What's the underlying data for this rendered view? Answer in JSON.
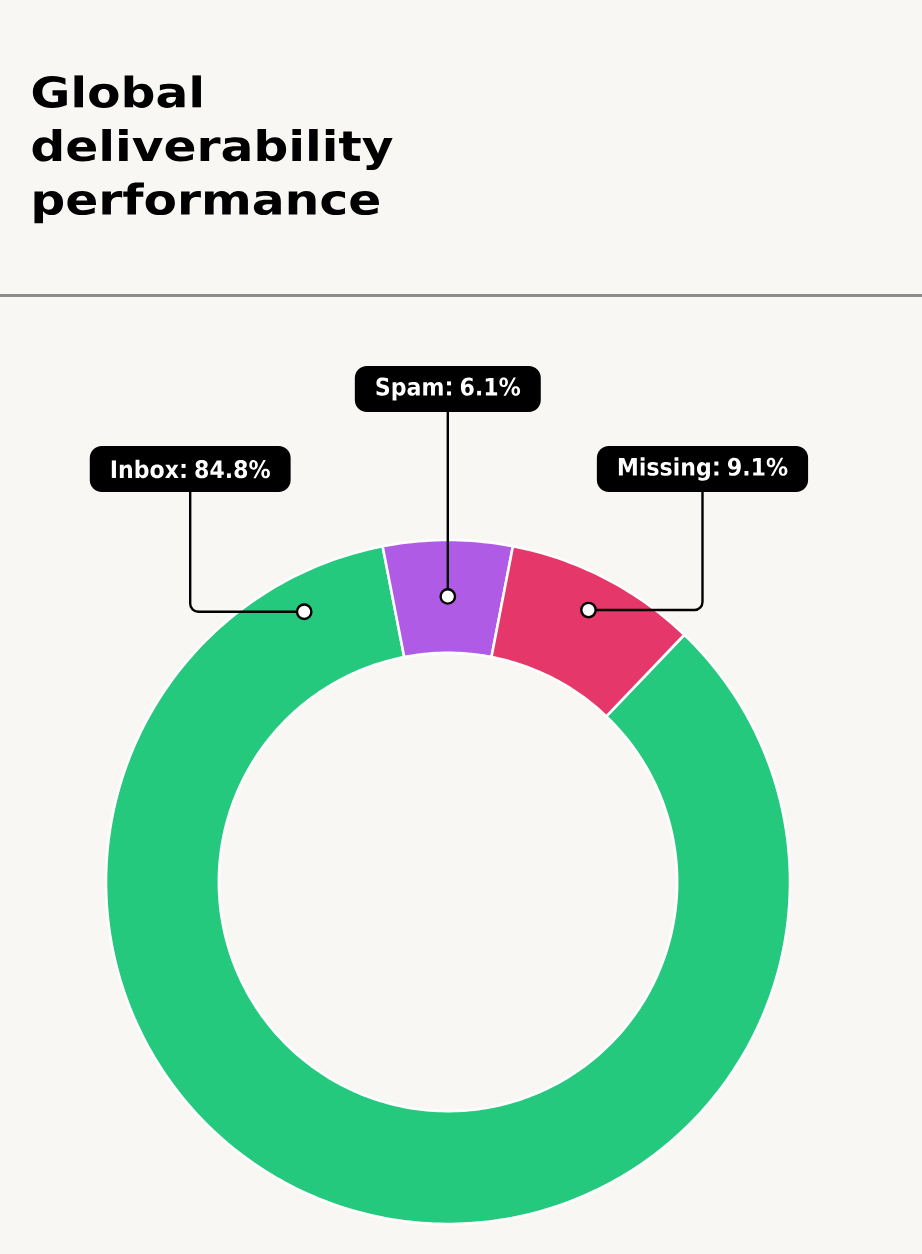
{
  "chart_data": {
    "type": "donut",
    "title": "Global deliverability performance",
    "categories": [
      "Inbox",
      "Spam",
      "Missing"
    ],
    "values": [
      84.8,
      6.1,
      9.1
    ],
    "colors": [
      "#24c97e",
      "#b05be6",
      "#e6376a"
    ],
    "value_labels": [
      "84.8%",
      "6.1%",
      "9.1%"
    ]
  }
}
